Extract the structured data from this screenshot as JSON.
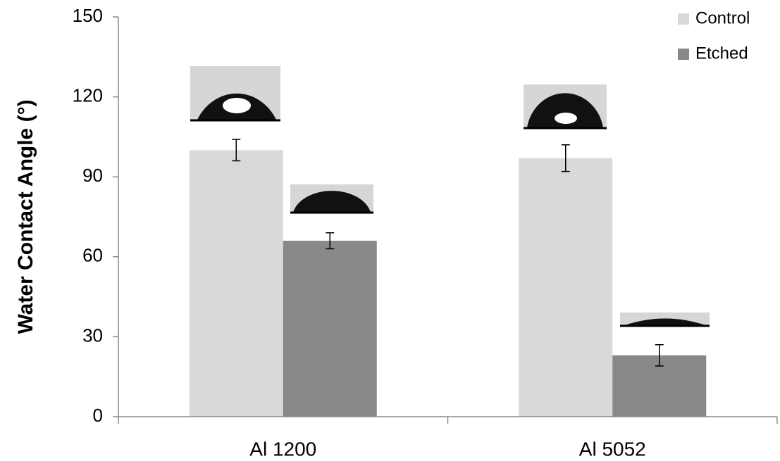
{
  "chart_data": {
    "type": "bar",
    "y_label": "Water Contact Angle  (°)",
    "categories": [
      "Al 1200",
      "Al 5052"
    ],
    "series": [
      {
        "name": "Control",
        "color": "#d9d9d9",
        "values": [
          100,
          97
        ],
        "errors": [
          4,
          5
        ]
      },
      {
        "name": "Etched",
        "color": "#888888",
        "values": [
          66,
          23
        ],
        "errors": [
          3,
          4
        ]
      }
    ],
    "ylim": [
      0,
      150
    ],
    "yticks": [
      0,
      30,
      60,
      90,
      120,
      150
    ],
    "legend": "top-right",
    "grid": false
  }
}
